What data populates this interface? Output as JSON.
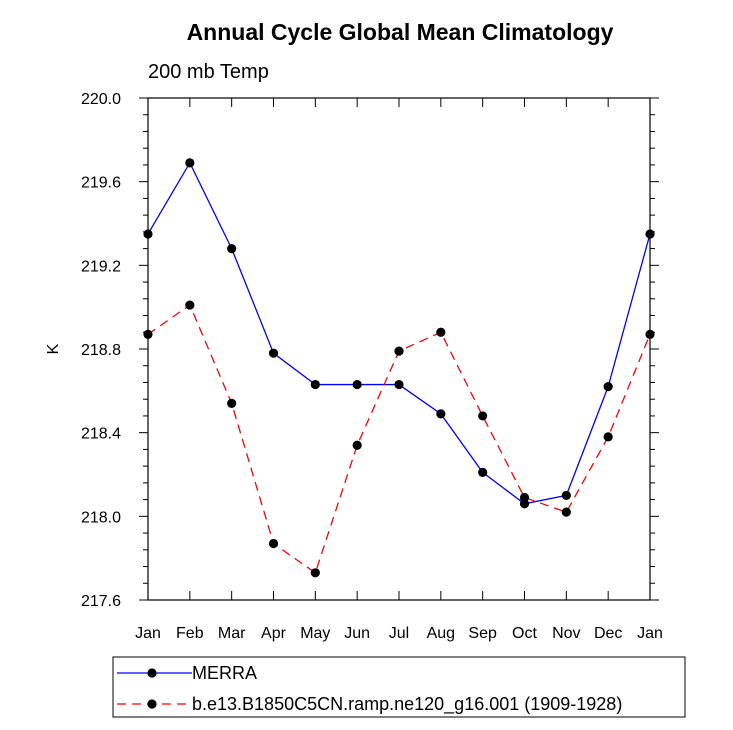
{
  "chart_data": {
    "type": "line",
    "title": "Annual Cycle Global Mean Climatology",
    "subtitle": "200 mb Temp",
    "xlabel": "",
    "ylabel": "K",
    "categories": [
      "Jan",
      "Feb",
      "Mar",
      "Apr",
      "May",
      "Jun",
      "Jul",
      "Aug",
      "Sep",
      "Oct",
      "Nov",
      "Dec",
      "Jan"
    ],
    "ylim": [
      217.6,
      220.0
    ],
    "yticks": [
      "217.6",
      "218.0",
      "218.4",
      "218.8",
      "219.2",
      "219.6",
      "220.0"
    ],
    "series": [
      {
        "name": "MERRA",
        "color": "#0000ff",
        "dash": "solid",
        "values": [
          219.35,
          219.69,
          219.28,
          218.78,
          218.63,
          218.63,
          218.63,
          218.49,
          218.21,
          218.06,
          218.1,
          218.62,
          219.35
        ]
      },
      {
        "name": "b.e13.B1850C5CN.ramp.ne120_g16.001 (1909-1928)",
        "color": "#ff0000",
        "dash": "dashed",
        "values": [
          218.87,
          219.01,
          218.54,
          217.87,
          217.73,
          218.34,
          218.79,
          218.88,
          218.48,
          218.09,
          218.02,
          218.38,
          218.87
        ]
      }
    ],
    "legend_position": "bottom"
  }
}
